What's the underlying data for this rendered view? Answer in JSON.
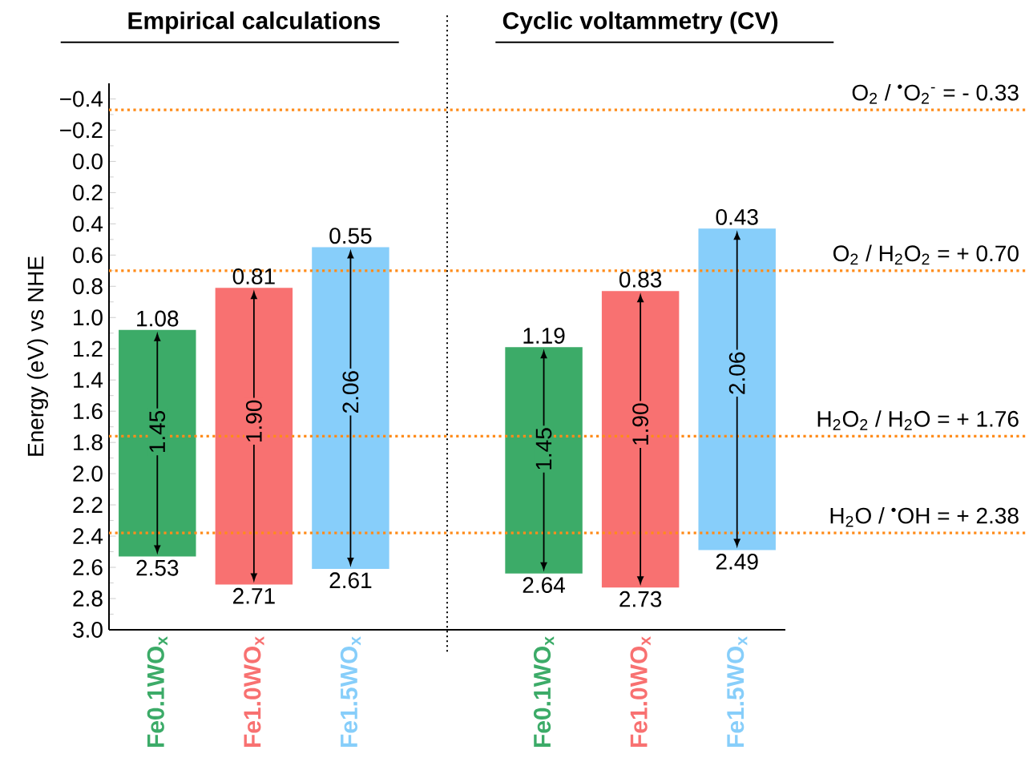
{
  "chart_data": {
    "type": "bar",
    "ylabel": "Energy (eV) vs NHE",
    "categories": [
      "Fe0.1WO$_{x}$",
      "Fe1.0WO$_{x}$",
      "Fe1.5WO$_{x}$",
      null,
      "Fe0.1WO$_{x}$",
      "Fe1.0WO$_{x}$",
      "Fe1.5WO$_{x}$"
    ],
    "values": [
      1.45,
      1.9,
      2.06,
      null,
      1.45,
      1.9,
      2.06
    ],
    "base": [
      1.08,
      0.81,
      0.55,
      null,
      1.19,
      0.83,
      0.43
    ],
    "value_labels": [
      "1.45",
      "1.90",
      "2.06",
      null,
      "1.45",
      "1.90",
      "2.06"
    ],
    "colors": [
      "#3cab68",
      "#f87171",
      "#87cefa",
      null,
      "#3cab68",
      "#f87171",
      "#87cefa"
    ],
    "ylim": [
      3.0,
      -0.5
    ],
    "yticks": [
      {
        "value": -0.4,
        "label": "−0.4"
      },
      {
        "value": -0.2,
        "label": "−0.2"
      },
      {
        "value": 0,
        "label": "0.0"
      },
      0.2,
      0.4,
      0.6,
      0.8,
      {
        "value": 1,
        "label": "1.0"
      },
      1.2,
      1.4,
      1.6,
      1.8,
      {
        "value": 2,
        "label": "2.0"
      },
      2.2,
      2.4,
      2.6,
      2.8,
      {
        "value": 3,
        "label": "3.0"
      }
    ],
    "ref_lines": [
      {
        "axis": "y",
        "value": -0.33,
        "label": "O$_{2}$ / $^{•}$O$_{2}$$^{-}$ = - 0.33",
        "color": "#ff8c1a",
        "line_style": "dotted"
      },
      {
        "axis": "y",
        "value": 0.7,
        "label": "O$_{2}$ / H$_{2}$O$_{2}$ = + 0.70",
        "color": "#ff8c1a",
        "line_style": "dotted"
      },
      {
        "axis": "y",
        "value": 1.76,
        "label": "H$_{2}$O$_{2}$ / H$_{2}$O = + 1.76",
        "color": "#ff8c1a",
        "line_style": "dotted"
      },
      {
        "axis": "y",
        "value": 2.38,
        "label": "H$_{2}$O / $^{•}$OH = + 2.38",
        "color": "#ff8c1a",
        "line_style": "dotted"
      }
    ],
    "annotations": [
      "Empirical calculations",
      "Cyclic voltammetry (CV)",
      {
        "text": "1.08",
        "y": 1.08
      },
      {
        "text": "2.53",
        "y": 2.53
      },
      {
        "text": "0.81",
        "y": 0.81
      },
      {
        "text": "2.71",
        "y": 2.71
      },
      {
        "text": "0.55",
        "y": 0.55
      },
      {
        "text": "2.61",
        "y": 2.61
      },
      {
        "text": "1.19",
        "y": 1.19
      },
      {
        "text": "2.64",
        "y": 2.64
      },
      {
        "text": "0.83",
        "y": 0.83
      },
      {
        "text": "2.73",
        "y": 2.73
      },
      {
        "text": "0.43",
        "y": 0.43
      },
      {
        "text": "2.49",
        "y": 2.49
      }
    ]
  }
}
